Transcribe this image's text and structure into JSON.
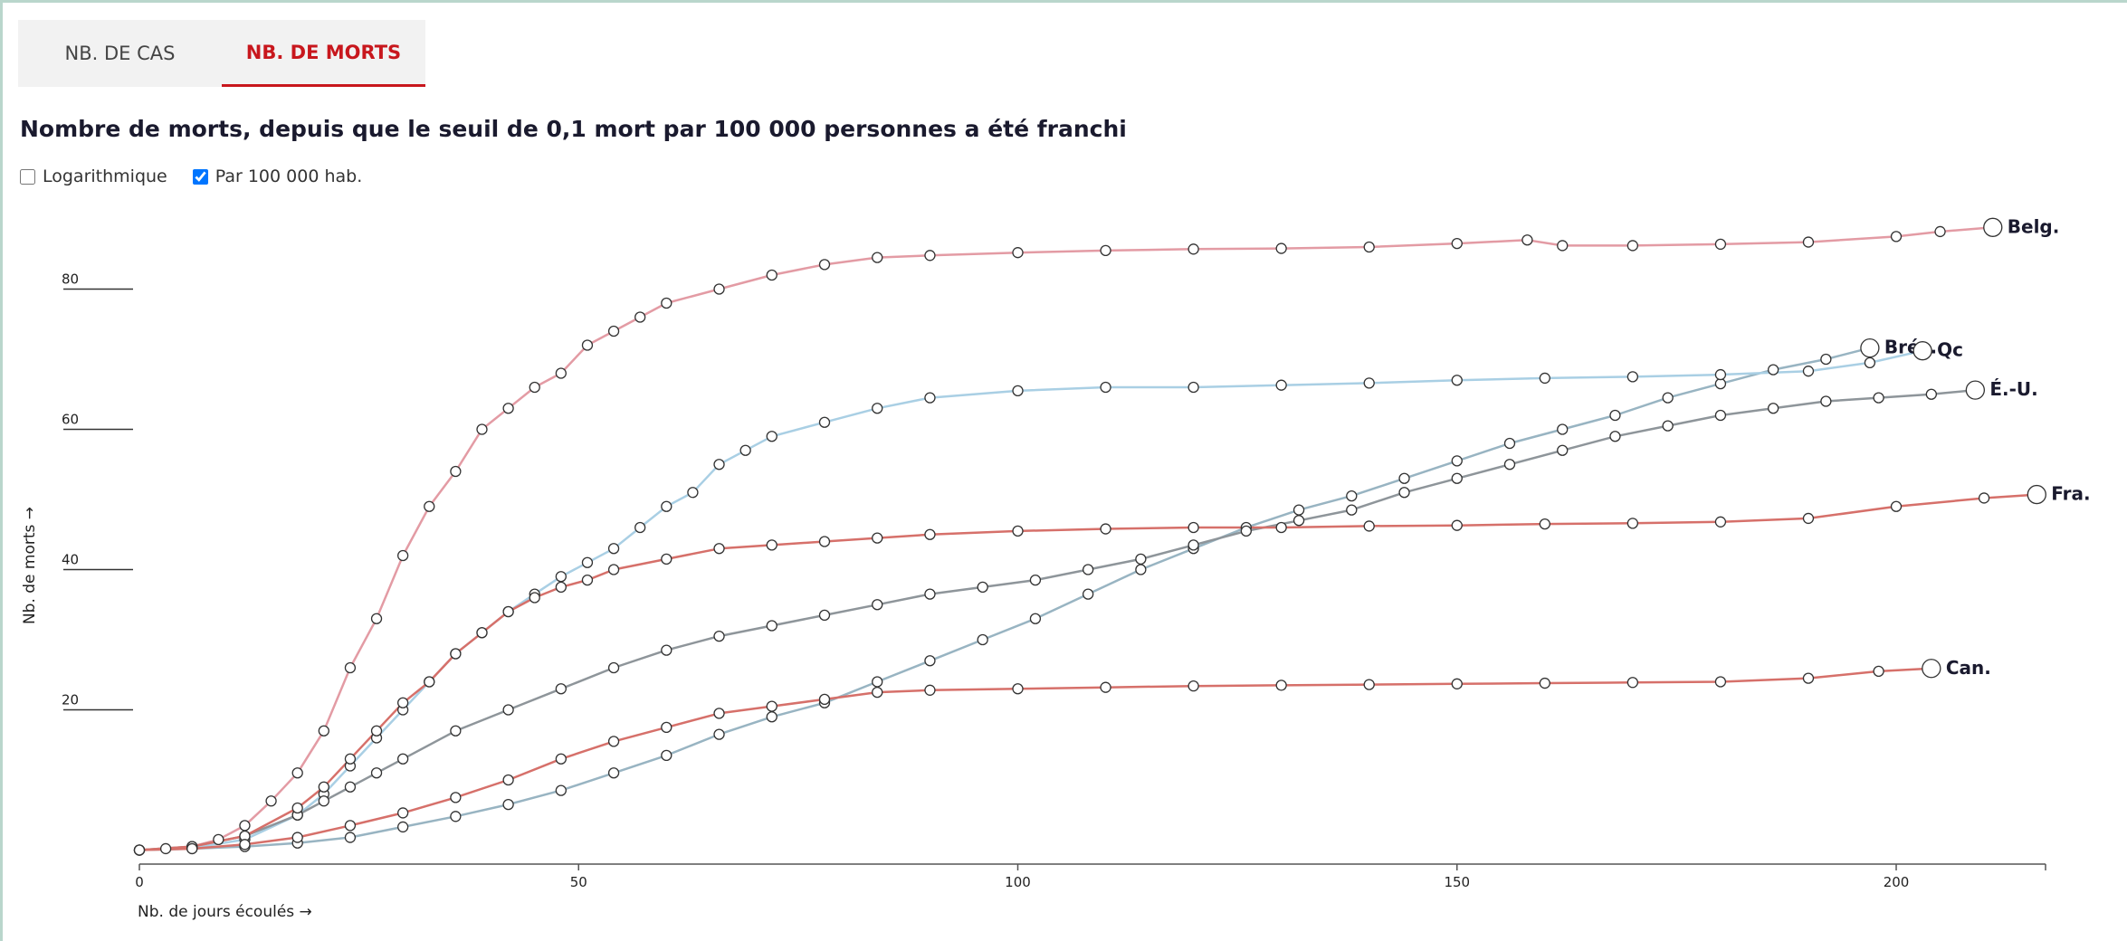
{
  "tabs": [
    "NB. DE CAS",
    "NB. DE MORTS"
  ],
  "active_tab": 1,
  "controls": [
    {
      "label": "Logarithmique",
      "checked": false
    },
    {
      "label": "Par 100 000 hab.",
      "checked": true
    }
  ],
  "chart_data": {
    "type": "line",
    "title": "Nombre de morts, depuis que le seuil de 0,1 mort par 100 000 personnes a été franchi",
    "x_label": "Nb. de jours écoulés →",
    "y_label": "Nb. de morts →",
    "xlim": [
      0,
      217
    ],
    "ylim": [
      -2,
      90
    ],
    "xticks": [
      0,
      50,
      100,
      150,
      200
    ],
    "yticks": [
      20,
      40,
      60,
      80
    ],
    "log_scale": false,
    "series": [
      {
        "name": "Belg.",
        "color": "#e39ba4",
        "x": [
          0,
          3,
          6,
          9,
          12,
          15,
          18,
          21,
          24,
          27,
          30,
          33,
          36,
          39,
          42,
          45,
          48,
          51,
          54,
          57,
          60,
          66,
          72,
          78,
          84,
          90,
          100,
          110,
          120,
          130,
          140,
          150,
          158,
          162,
          170,
          180,
          190,
          200,
          205,
          211
        ],
        "values": [
          0,
          0.2,
          0.5,
          1.5,
          3.5,
          7,
          11,
          17,
          26,
          33,
          42,
          49,
          54,
          60,
          63,
          66,
          68,
          72,
          74,
          76,
          78,
          80,
          82,
          83.5,
          84.5,
          84.8,
          85.2,
          85.5,
          85.7,
          85.8,
          86,
          86.5,
          87,
          86.2,
          86.2,
          86.4,
          86.7,
          87.5,
          88.2,
          88.8
        ]
      },
      {
        "name": "Brés.",
        "color": "#98b4c2",
        "x": [
          0,
          6,
          12,
          18,
          24,
          30,
          36,
          42,
          48,
          54,
          60,
          66,
          72,
          78,
          84,
          90,
          96,
          102,
          108,
          114,
          120,
          126,
          132,
          138,
          144,
          150,
          156,
          162,
          168,
          174,
          180,
          186,
          192,
          197
        ],
        "values": [
          0,
          0.2,
          0.5,
          1,
          1.8,
          3.3,
          4.8,
          6.5,
          8.5,
          11,
          13.5,
          16.5,
          19,
          21,
          24,
          27,
          30,
          33,
          36.5,
          40,
          43,
          46,
          48.5,
          50.5,
          53,
          55.5,
          58,
          60,
          62,
          64.5,
          66.5,
          68.5,
          70,
          71.6
        ]
      },
      {
        "name": "Qc",
        "color": "#a9cfe4",
        "x": [
          0,
          6,
          12,
          18,
          21,
          24,
          27,
          30,
          33,
          36,
          39,
          42,
          45,
          48,
          51,
          54,
          57,
          60,
          63,
          66,
          69,
          72,
          78,
          84,
          90,
          100,
          110,
          120,
          130,
          140,
          150,
          160,
          170,
          180,
          190,
          197,
          203
        ],
        "values": [
          0,
          0.3,
          1.5,
          5,
          8,
          12,
          16,
          20,
          24,
          28,
          31,
          34,
          36.5,
          39,
          41,
          43,
          46,
          49,
          51,
          55,
          57,
          59,
          61,
          63,
          64.5,
          65.5,
          66,
          66,
          66.3,
          66.6,
          67,
          67.3,
          67.5,
          67.8,
          68.3,
          69.5,
          71.2
        ]
      },
      {
        "name": "É.-U.",
        "color": "#8e959a",
        "x": [
          0,
          6,
          12,
          18,
          21,
          24,
          27,
          30,
          36,
          42,
          48,
          54,
          60,
          66,
          72,
          78,
          84,
          90,
          96,
          102,
          108,
          114,
          120,
          126,
          132,
          138,
          144,
          150,
          156,
          162,
          168,
          174,
          180,
          186,
          192,
          198,
          204,
          209
        ],
        "values": [
          0,
          0.5,
          2,
          5,
          7,
          9,
          11,
          13,
          17,
          20,
          23,
          26,
          28.5,
          30.5,
          32,
          33.5,
          35,
          36.5,
          37.5,
          38.5,
          40,
          41.5,
          43.5,
          45.5,
          47,
          48.5,
          51,
          53,
          55,
          57,
          59,
          60.5,
          62,
          63,
          64,
          64.5,
          65,
          65.6
        ]
      },
      {
        "name": "Fra.",
        "color": "#d6706a",
        "x": [
          0,
          6,
          12,
          18,
          21,
          24,
          27,
          30,
          33,
          36,
          39,
          42,
          45,
          48,
          51,
          54,
          60,
          66,
          72,
          78,
          84,
          90,
          100,
          110,
          120,
          130,
          140,
          150,
          160,
          170,
          180,
          190,
          200,
          210,
          216
        ],
        "values": [
          0,
          0.5,
          2,
          6,
          9,
          13,
          17,
          21,
          24,
          28,
          31,
          34,
          36,
          37.5,
          38.5,
          40,
          41.5,
          43,
          43.5,
          44,
          44.5,
          45,
          45.5,
          45.8,
          46,
          46,
          46.2,
          46.3,
          46.5,
          46.6,
          46.8,
          47.3,
          49,
          50.2,
          50.7
        ]
      },
      {
        "name": "Can.",
        "color": "#d6706a",
        "x": [
          0,
          6,
          12,
          18,
          24,
          30,
          36,
          42,
          48,
          54,
          60,
          66,
          72,
          78,
          84,
          90,
          100,
          110,
          120,
          130,
          140,
          150,
          160,
          170,
          180,
          190,
          198,
          204
        ],
        "values": [
          0,
          0.2,
          0.8,
          1.8,
          3.5,
          5.3,
          7.5,
          10,
          13,
          15.5,
          17.5,
          19.5,
          20.5,
          21.5,
          22.5,
          22.8,
          23,
          23.2,
          23.4,
          23.5,
          23.6,
          23.7,
          23.8,
          23.9,
          24,
          24.5,
          25.5,
          25.9
        ]
      }
    ]
  }
}
